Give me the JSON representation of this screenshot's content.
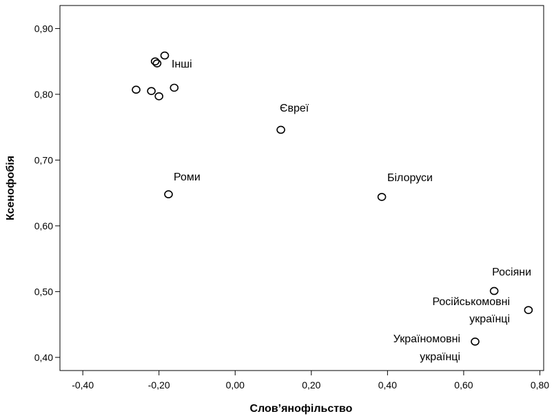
{
  "chart_data": {
    "type": "scatter",
    "title": "",
    "xlabel": "Слов’янофільство",
    "ylabel": "Ксенофобія",
    "xlim": [
      -0.46,
      0.81
    ],
    "ylim": [
      0.38,
      0.935
    ],
    "grid": false,
    "x_ticks": [
      -0.4,
      -0.2,
      0.0,
      0.2,
      0.4,
      0.6,
      0.8
    ],
    "x_tick_labels": [
      "-0,40",
      "-0,20",
      "0,00",
      "0,20",
      "0,40",
      "0,60",
      "0,80"
    ],
    "y_ticks": [
      0.4,
      0.5,
      0.6,
      0.7,
      0.8,
      0.9
    ],
    "y_tick_labels": [
      "0,40",
      "0,50",
      "0,60",
      "0,70",
      "0,80",
      "0,90"
    ],
    "points": [
      {
        "x": -0.185,
        "y": 0.859
      },
      {
        "x": -0.21,
        "y": 0.85
      },
      {
        "x": -0.205,
        "y": 0.847
      },
      {
        "x": -0.26,
        "y": 0.807
      },
      {
        "x": -0.22,
        "y": 0.805
      },
      {
        "x": -0.2,
        "y": 0.797
      },
      {
        "x": -0.16,
        "y": 0.81
      },
      {
        "x": 0.12,
        "y": 0.746
      },
      {
        "x": -0.175,
        "y": 0.648
      },
      {
        "x": 0.385,
        "y": 0.644
      },
      {
        "x": 0.68,
        "y": 0.501
      },
      {
        "x": 0.77,
        "y": 0.472
      },
      {
        "x": 0.63,
        "y": 0.424
      }
    ],
    "labels": [
      {
        "lines": [
          "Інші"
        ]
      },
      {
        "lines": [
          "Євреї"
        ]
      },
      {
        "lines": [
          "Роми"
        ]
      },
      {
        "lines": [
          "Білоруси"
        ]
      },
      {
        "lines": [
          "Росіяни"
        ]
      },
      {
        "lines": [
          "Російськомовні",
          "українці"
        ]
      },
      {
        "lines": [
          "Україномовні",
          "українці"
        ]
      }
    ]
  }
}
